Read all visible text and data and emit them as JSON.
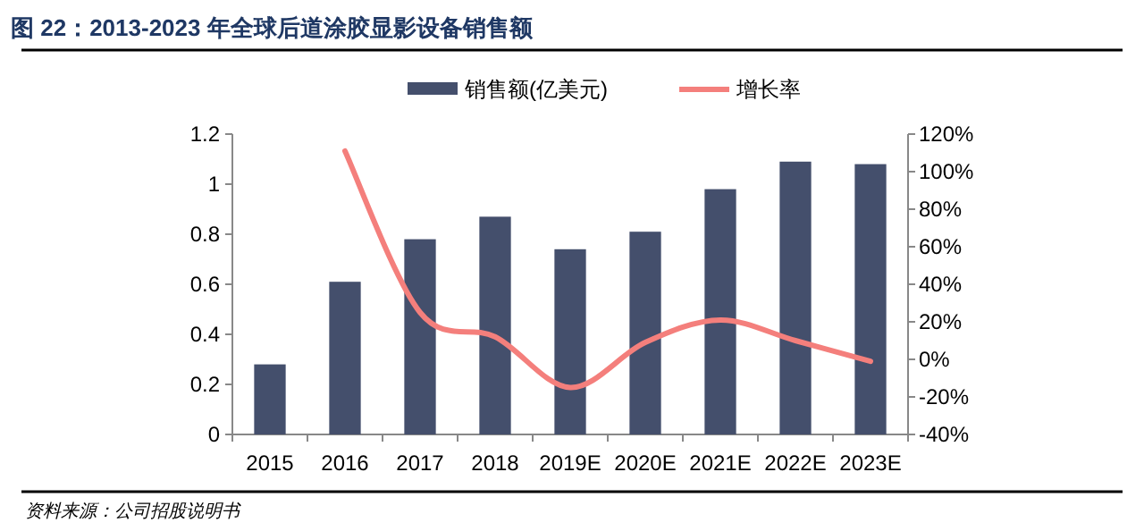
{
  "chart_data": {
    "type": "bar",
    "title": "图 22：2013-2023 年全球后道涂胶显影设备销售额",
    "categories": [
      "2015",
      "2016",
      "2017",
      "2018",
      "2019E",
      "2020E",
      "2021E",
      "2022E",
      "2023E"
    ],
    "series": [
      {
        "name": "销售额(亿美元)",
        "color": "#444f6c",
        "values": [
          0.28,
          0.61,
          0.78,
          0.87,
          0.74,
          0.81,
          0.98,
          1.09,
          1.08
        ]
      },
      {
        "name": "增长率",
        "type": "line",
        "axis": "y2",
        "color": "#f47f7c",
        "values": [
          null,
          111,
          25,
          12,
          -15,
          9,
          21,
          10,
          -1
        ]
      }
    ],
    "ylim": [
      0,
      1.2
    ],
    "yticks": [
      0,
      {
        "value": 0.2,
        "label": "0.2"
      },
      {
        "value": 0.4,
        "label": "0.4"
      },
      {
        "value": 0.6,
        "label": "0.6"
      },
      {
        "value": 0.8,
        "label": "0.8"
      },
      1,
      {
        "value": 1.2,
        "label": "1.2"
      }
    ],
    "y2lim": [
      -40,
      120
    ],
    "y2ticks": [
      {
        "value": -40,
        "label": "-40%"
      },
      {
        "value": -20,
        "label": "-20%"
      },
      {
        "value": 0,
        "label": "0%"
      },
      {
        "value": 20,
        "label": "20%"
      },
      {
        "value": 40,
        "label": "40%"
      },
      {
        "value": 60,
        "label": "60%"
      },
      {
        "value": 80,
        "label": "80%"
      },
      {
        "value": 100,
        "label": "100%"
      },
      {
        "value": 120,
        "label": "120%"
      }
    ],
    "legend": "top",
    "marker": "none",
    "line_style": "solid",
    "annotations": [
      "资料来源：公司招股说明书"
    ]
  }
}
